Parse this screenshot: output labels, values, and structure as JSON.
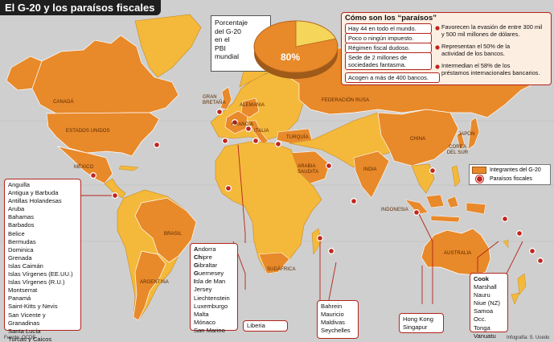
{
  "title": "El G-20 y los paraísos fiscales",
  "gdp_share": {
    "label_lines": [
      "Porcentaje",
      "del G-20",
      "en el",
      "PBI",
      "mundial"
    ],
    "percent": 80,
    "percent_label": "80%"
  },
  "how": {
    "title": "Cómo son los “paraísos”",
    "left_facts": [
      "Hay 44 en todo el mundo.",
      "Poco o ningún impuesto.",
      "Régimen fiscal dudoso.",
      "Sede de 2 millones de",
      "sociedades fantasma.",
      "Acogen a más de 400 bancos."
    ],
    "right_facts": [
      "Favorecen la evasión de entre 300 mil",
      "y 500 mil millones de dólares.",
      "Representan el 50% de la",
      "actividad de los bancos.",
      "Intermedian el 58% de los",
      "préstamos internacionales bancarios."
    ]
  },
  "legend": {
    "members": "Integrantes del G-20",
    "havens": "Paraísos fiscales"
  },
  "country_labels": {
    "canada": "CANADÁ",
    "usa": "ESTADOS UNIDOS",
    "mexico": "MÉXICO",
    "brazil": "BRASIL",
    "argentina": "ARGENTINA",
    "uk": "GRAN BRETAÑA",
    "germany": "ALEMANIA",
    "france": "FRANCIA",
    "italy": "ITALIA",
    "russia": "FEDERACIÓN RUSA",
    "turkey": "TURQUÍA",
    "china": "CHINA",
    "japan": "JAPÓN",
    "korea": "COREA DEL SUR",
    "saudi": "ARABIA SAUDITA",
    "india": "INDIA",
    "indonesia": "INDONESIA",
    "australia": "AUSTRALIA",
    "southafrica": "SUDÁFRICA"
  },
  "havens": {
    "americas": [
      "Anguilla",
      "Antigua y Barbuda",
      "Antillas Holandesas",
      "Aruba",
      "Bahamas",
      "Barbados",
      "Belice",
      "Bermudas",
      "Dominica",
      "Grenada",
      "Islas Caimán",
      "Islas Vírgenes (EE.UU.)",
      "Islas Vírgenes (R.U.)",
      "Montserrat",
      "Panamá",
      "Saint-Kitts y Nevis",
      "San Vicente y Granadinas",
      "Santa Lucía",
      "Turcas y Caicos"
    ],
    "europe": [
      {
        "bold": "A",
        "rest": "ndorra"
      },
      {
        "bold": "Ch",
        "rest": "ipre"
      },
      {
        "bold": "G",
        "rest": "ibraltar"
      },
      {
        "bold": "G",
        "rest": "uernesey"
      },
      {
        "bold": "I",
        "rest": "sla de Man"
      },
      {
        "bold": "",
        "rest": "Jersey"
      },
      {
        "bold": "",
        "rest": "Liechtenstein"
      },
      {
        "bold": "",
        "rest": "Luxemburgo"
      },
      {
        "bold": "",
        "rest": "Malta"
      },
      {
        "bold": "",
        "rest": "Mónaco"
      },
      {
        "bold": "",
        "rest": "San Marino"
      }
    ],
    "liberia": [
      "Liberia"
    ],
    "indian_ocean": [
      "Bahrein",
      "Mauricio",
      "Maldivas",
      "Seychelles"
    ],
    "asia": [
      "Hong Kong",
      "Singapur"
    ],
    "pacific": [
      "Cook",
      "Marshall",
      "Nauru",
      "Niue (NZ)",
      "Samoa Occ.",
      "Tonga",
      "Vanuatu"
    ]
  },
  "source": "Fuente: OCDE",
  "credit": "Infografía: S. Ucedo",
  "colors": {
    "member": "#e8892a",
    "other": "#f4b93a",
    "ocean": "#cfcfcf",
    "haven": "#c0261d"
  }
}
